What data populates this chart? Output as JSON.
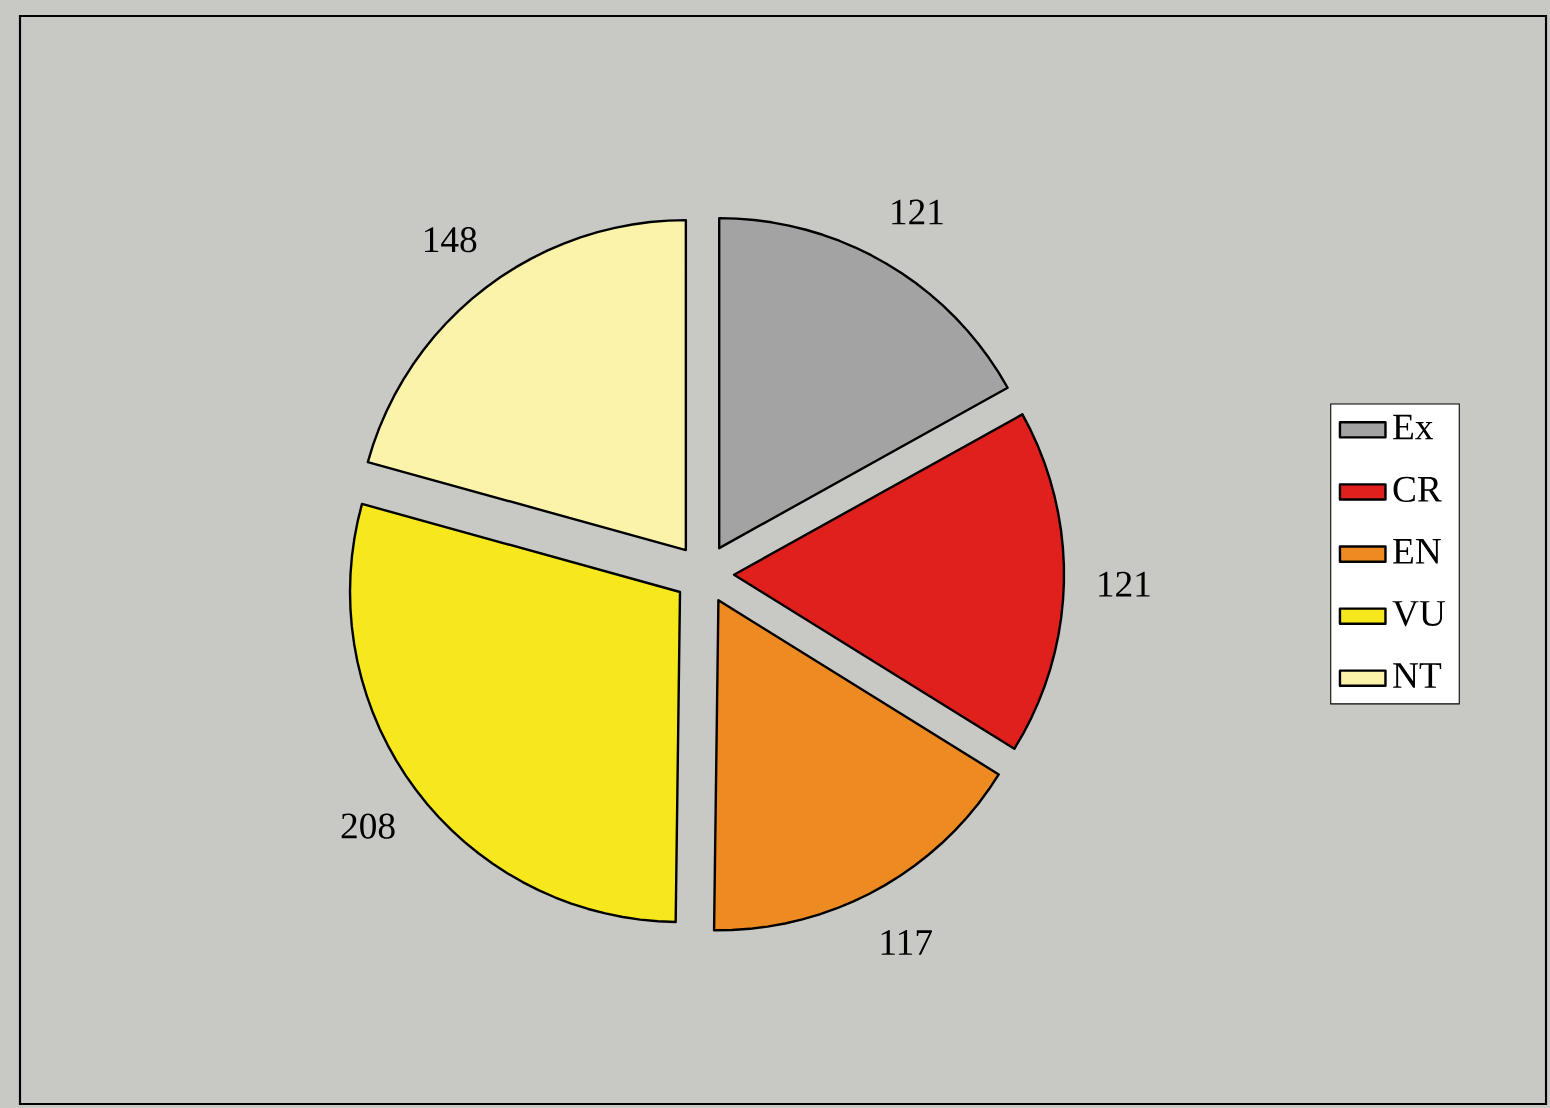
{
  "chart_data": {
    "type": "pie",
    "categories": [
      "Ex",
      "CR",
      "EN",
      "VU",
      "NT"
    ],
    "values": [
      121,
      121,
      117,
      208,
      148
    ],
    "colors": [
      "#a3a3a3",
      "#e0201c",
      "#ee8a22",
      "#f6e81c",
      "#fbf3aa"
    ],
    "data_labels": true,
    "legend": "right"
  }
}
